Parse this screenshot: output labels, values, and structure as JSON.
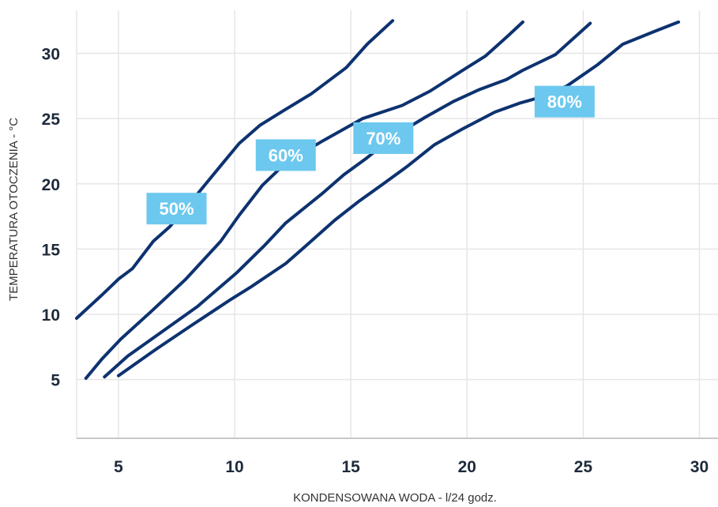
{
  "chart_data": {
    "type": "line",
    "xlabel": "KONDENSOWANA WODA - l/24 godz.",
    "ylabel": "TEMPERATURA OTOCZENIA - °C",
    "xlim": [
      3.2,
      30.8
    ],
    "ylim": [
      0.5,
      33.3
    ],
    "x_ticks": [
      5,
      10,
      15,
      20,
      25,
      30
    ],
    "y_ticks": [
      5,
      10,
      15,
      20,
      25,
      30
    ],
    "grid": true,
    "colors": {
      "line": "#0d3270",
      "label_bg": "#6cc8ee",
      "label_text": "#ffffff",
      "grid": "#e6e6e6"
    },
    "series": [
      {
        "name": "50%",
        "label_at": [
          7.5,
          18.1
        ],
        "points": [
          [
            3.2,
            9.7
          ],
          [
            4.3,
            11.5
          ],
          [
            5.0,
            12.7
          ],
          [
            5.6,
            13.5
          ],
          [
            6.5,
            15.6
          ],
          [
            7.2,
            16.7
          ],
          [
            8.3,
            19.0
          ],
          [
            9.5,
            21.6
          ],
          [
            10.2,
            23.1
          ],
          [
            11.1,
            24.5
          ],
          [
            12.1,
            25.6
          ],
          [
            13.3,
            26.9
          ],
          [
            14.8,
            28.9
          ],
          [
            15.7,
            30.7
          ],
          [
            16.8,
            32.5
          ]
        ]
      },
      {
        "name": "60%",
        "label_at": [
          12.2,
          22.2
        ],
        "points": [
          [
            3.6,
            5.1
          ],
          [
            4.3,
            6.6
          ],
          [
            5.1,
            8.1
          ],
          [
            6.4,
            10.2
          ],
          [
            7.9,
            12.7
          ],
          [
            9.4,
            15.6
          ],
          [
            10.2,
            17.6
          ],
          [
            11.2,
            19.9
          ],
          [
            12.2,
            21.6
          ],
          [
            13.8,
            23.3
          ],
          [
            15.5,
            25.0
          ],
          [
            17.2,
            26.0
          ],
          [
            18.4,
            27.1
          ],
          [
            19.9,
            28.8
          ],
          [
            20.8,
            29.8
          ],
          [
            21.8,
            31.4
          ],
          [
            22.4,
            32.4
          ]
        ]
      },
      {
        "name": "70%",
        "label_at": [
          16.4,
          23.5
        ],
        "points": [
          [
            4.4,
            5.2
          ],
          [
            5.4,
            6.8
          ],
          [
            6.9,
            8.7
          ],
          [
            8.4,
            10.6
          ],
          [
            10.1,
            13.2
          ],
          [
            11.3,
            15.3
          ],
          [
            12.2,
            17.0
          ],
          [
            13.8,
            19.3
          ],
          [
            14.7,
            20.7
          ],
          [
            15.7,
            22.0
          ],
          [
            16.9,
            23.7
          ],
          [
            18.2,
            25.1
          ],
          [
            19.4,
            26.3
          ],
          [
            20.5,
            27.2
          ],
          [
            21.7,
            28.0
          ],
          [
            22.4,
            28.7
          ],
          [
            23.8,
            29.9
          ],
          [
            25.3,
            32.3
          ]
        ]
      },
      {
        "name": "80%",
        "label_at": [
          24.2,
          26.3
        ],
        "points": [
          [
            5.0,
            5.3
          ],
          [
            6.6,
            7.3
          ],
          [
            8.1,
            9.1
          ],
          [
            9.8,
            11.1
          ],
          [
            10.7,
            12.1
          ],
          [
            12.2,
            13.9
          ],
          [
            13.1,
            15.3
          ],
          [
            14.3,
            17.2
          ],
          [
            15.3,
            18.6
          ],
          [
            16.4,
            20.0
          ],
          [
            17.4,
            21.3
          ],
          [
            18.6,
            23.0
          ],
          [
            19.8,
            24.2
          ],
          [
            21.2,
            25.5
          ],
          [
            22.3,
            26.2
          ],
          [
            23.3,
            26.7
          ],
          [
            24.3,
            27.5
          ],
          [
            25.6,
            29.1
          ],
          [
            26.7,
            30.7
          ],
          [
            28.1,
            31.7
          ],
          [
            29.1,
            32.4
          ]
        ]
      }
    ]
  }
}
